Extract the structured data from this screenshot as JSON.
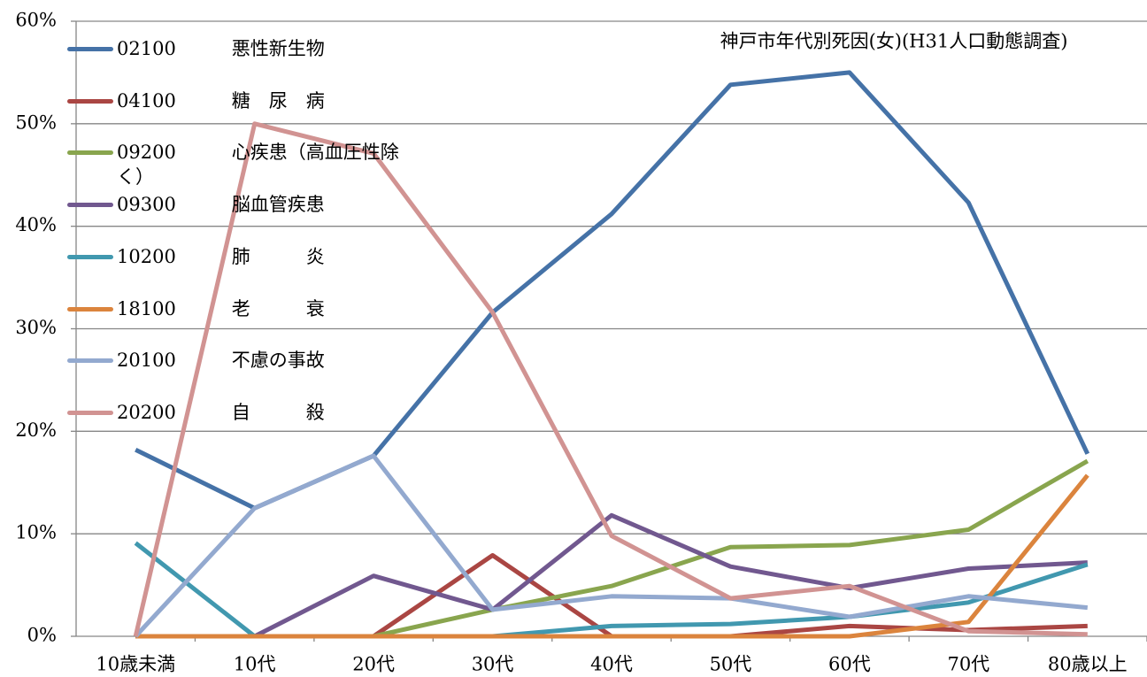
{
  "chart_data": {
    "type": "line",
    "title": "神戸市年代別死因(女)(H31人口動態調査)",
    "categories": [
      "10歳未満",
      "10代",
      "20代",
      "30代",
      "40代",
      "50代",
      "60代",
      "70代",
      "80歳以上"
    ],
    "ylim": [
      0,
      60
    ],
    "yticks": [
      {
        "value": 0,
        "label": "0%"
      },
      {
        "value": 10,
        "label": "10%"
      },
      {
        "value": 20,
        "label": "20%"
      },
      {
        "value": 30,
        "label": "30%"
      },
      {
        "value": 40,
        "label": "40%"
      },
      {
        "value": 50,
        "label": "50%"
      },
      {
        "value": 60,
        "label": "60%"
      }
    ],
    "grid": true,
    "legend": "upper left",
    "series": [
      {
        "name": "02100　　　悪性新生物",
        "color": "#4572A7",
        "values": [
          18.2,
          12.5,
          17.6,
          31.6,
          41.2,
          53.8,
          55.0,
          42.3,
          17.8
        ]
      },
      {
        "name": "04100　　　糖　尿　病",
        "color": "#AA4643",
        "values": [
          0,
          0,
          0,
          7.9,
          0,
          0,
          1.0,
          0.6,
          1.0
        ]
      },
      {
        "name": "09200　　　心疾患（高血圧性除く）",
        "color": "#89A54E",
        "values": [
          0,
          0,
          0,
          2.6,
          4.9,
          8.7,
          8.9,
          10.4,
          17.1
        ]
      },
      {
        "name": "09300　　　脳血管疾患",
        "color": "#71588F",
        "values": [
          0,
          0,
          5.9,
          2.6,
          11.8,
          6.8,
          4.7,
          6.6,
          7.2
        ]
      },
      {
        "name": "10200　　　肺　　　炎",
        "color": "#4198AF",
        "values": [
          9.1,
          0,
          0,
          0,
          1.0,
          1.2,
          1.9,
          3.3,
          7.0
        ]
      },
      {
        "name": "18100　　　老　　　衰",
        "color": "#DB843D",
        "values": [
          0,
          0,
          0,
          0,
          0,
          0,
          0,
          1.4,
          15.7
        ]
      },
      {
        "name": "20100　　　不慮の事故",
        "color": "#93A9CF",
        "values": [
          0,
          12.5,
          17.6,
          2.6,
          3.9,
          3.7,
          1.9,
          3.9,
          2.8
        ]
      },
      {
        "name": "20200　　　自　　　殺",
        "color": "#D19392",
        "values": [
          0,
          50.0,
          47.1,
          31.6,
          9.8,
          3.7,
          4.9,
          0.5,
          0.2
        ]
      }
    ]
  }
}
